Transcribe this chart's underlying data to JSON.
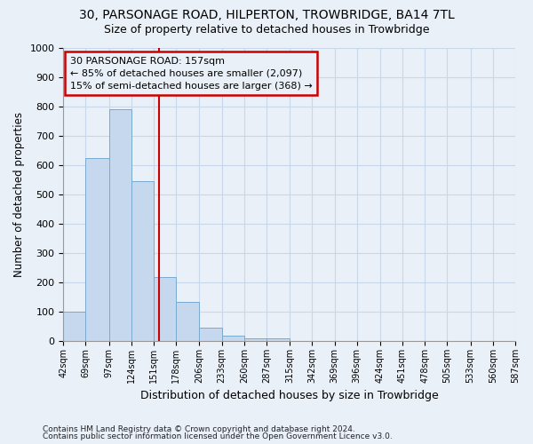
{
  "title": "30, PARSONAGE ROAD, HILPERTON, TROWBRIDGE, BA14 7TL",
  "subtitle": "Size of property relative to detached houses in Trowbridge",
  "xlabel": "Distribution of detached houses by size in Trowbridge",
  "ylabel": "Number of detached properties",
  "footnote1": "Contains HM Land Registry data © Crown copyright and database right 2024.",
  "footnote2": "Contains public sector information licensed under the Open Government Licence v3.0.",
  "annotation_line1": "30 PARSONAGE ROAD: 157sqm",
  "annotation_line2": "← 85% of detached houses are smaller (2,097)",
  "annotation_line3": "15% of semi-detached houses are larger (368) →",
  "property_size": 157,
  "bin_edges": [
    42,
    69,
    97,
    124,
    151,
    178,
    206,
    233,
    260,
    287,
    315,
    342,
    369,
    396,
    424,
    451,
    478,
    505,
    533,
    560,
    587
  ],
  "bar_heights": [
    100,
    625,
    790,
    545,
    220,
    135,
    45,
    20,
    10,
    10,
    0,
    0,
    0,
    0,
    0,
    0,
    0,
    0,
    0,
    0
  ],
  "bar_color": "#c5d8ee",
  "bar_edge_color": "#7aaad0",
  "vline_color": "#cc0000",
  "annotation_box_edge_color": "#cc0000",
  "grid_color": "#c8d8ea",
  "bg_color": "#eaf0f8",
  "ylim": [
    0,
    1000
  ],
  "yticks": [
    0,
    100,
    200,
    300,
    400,
    500,
    600,
    700,
    800,
    900,
    1000
  ],
  "title_fontsize": 10,
  "subtitle_fontsize": 9
}
